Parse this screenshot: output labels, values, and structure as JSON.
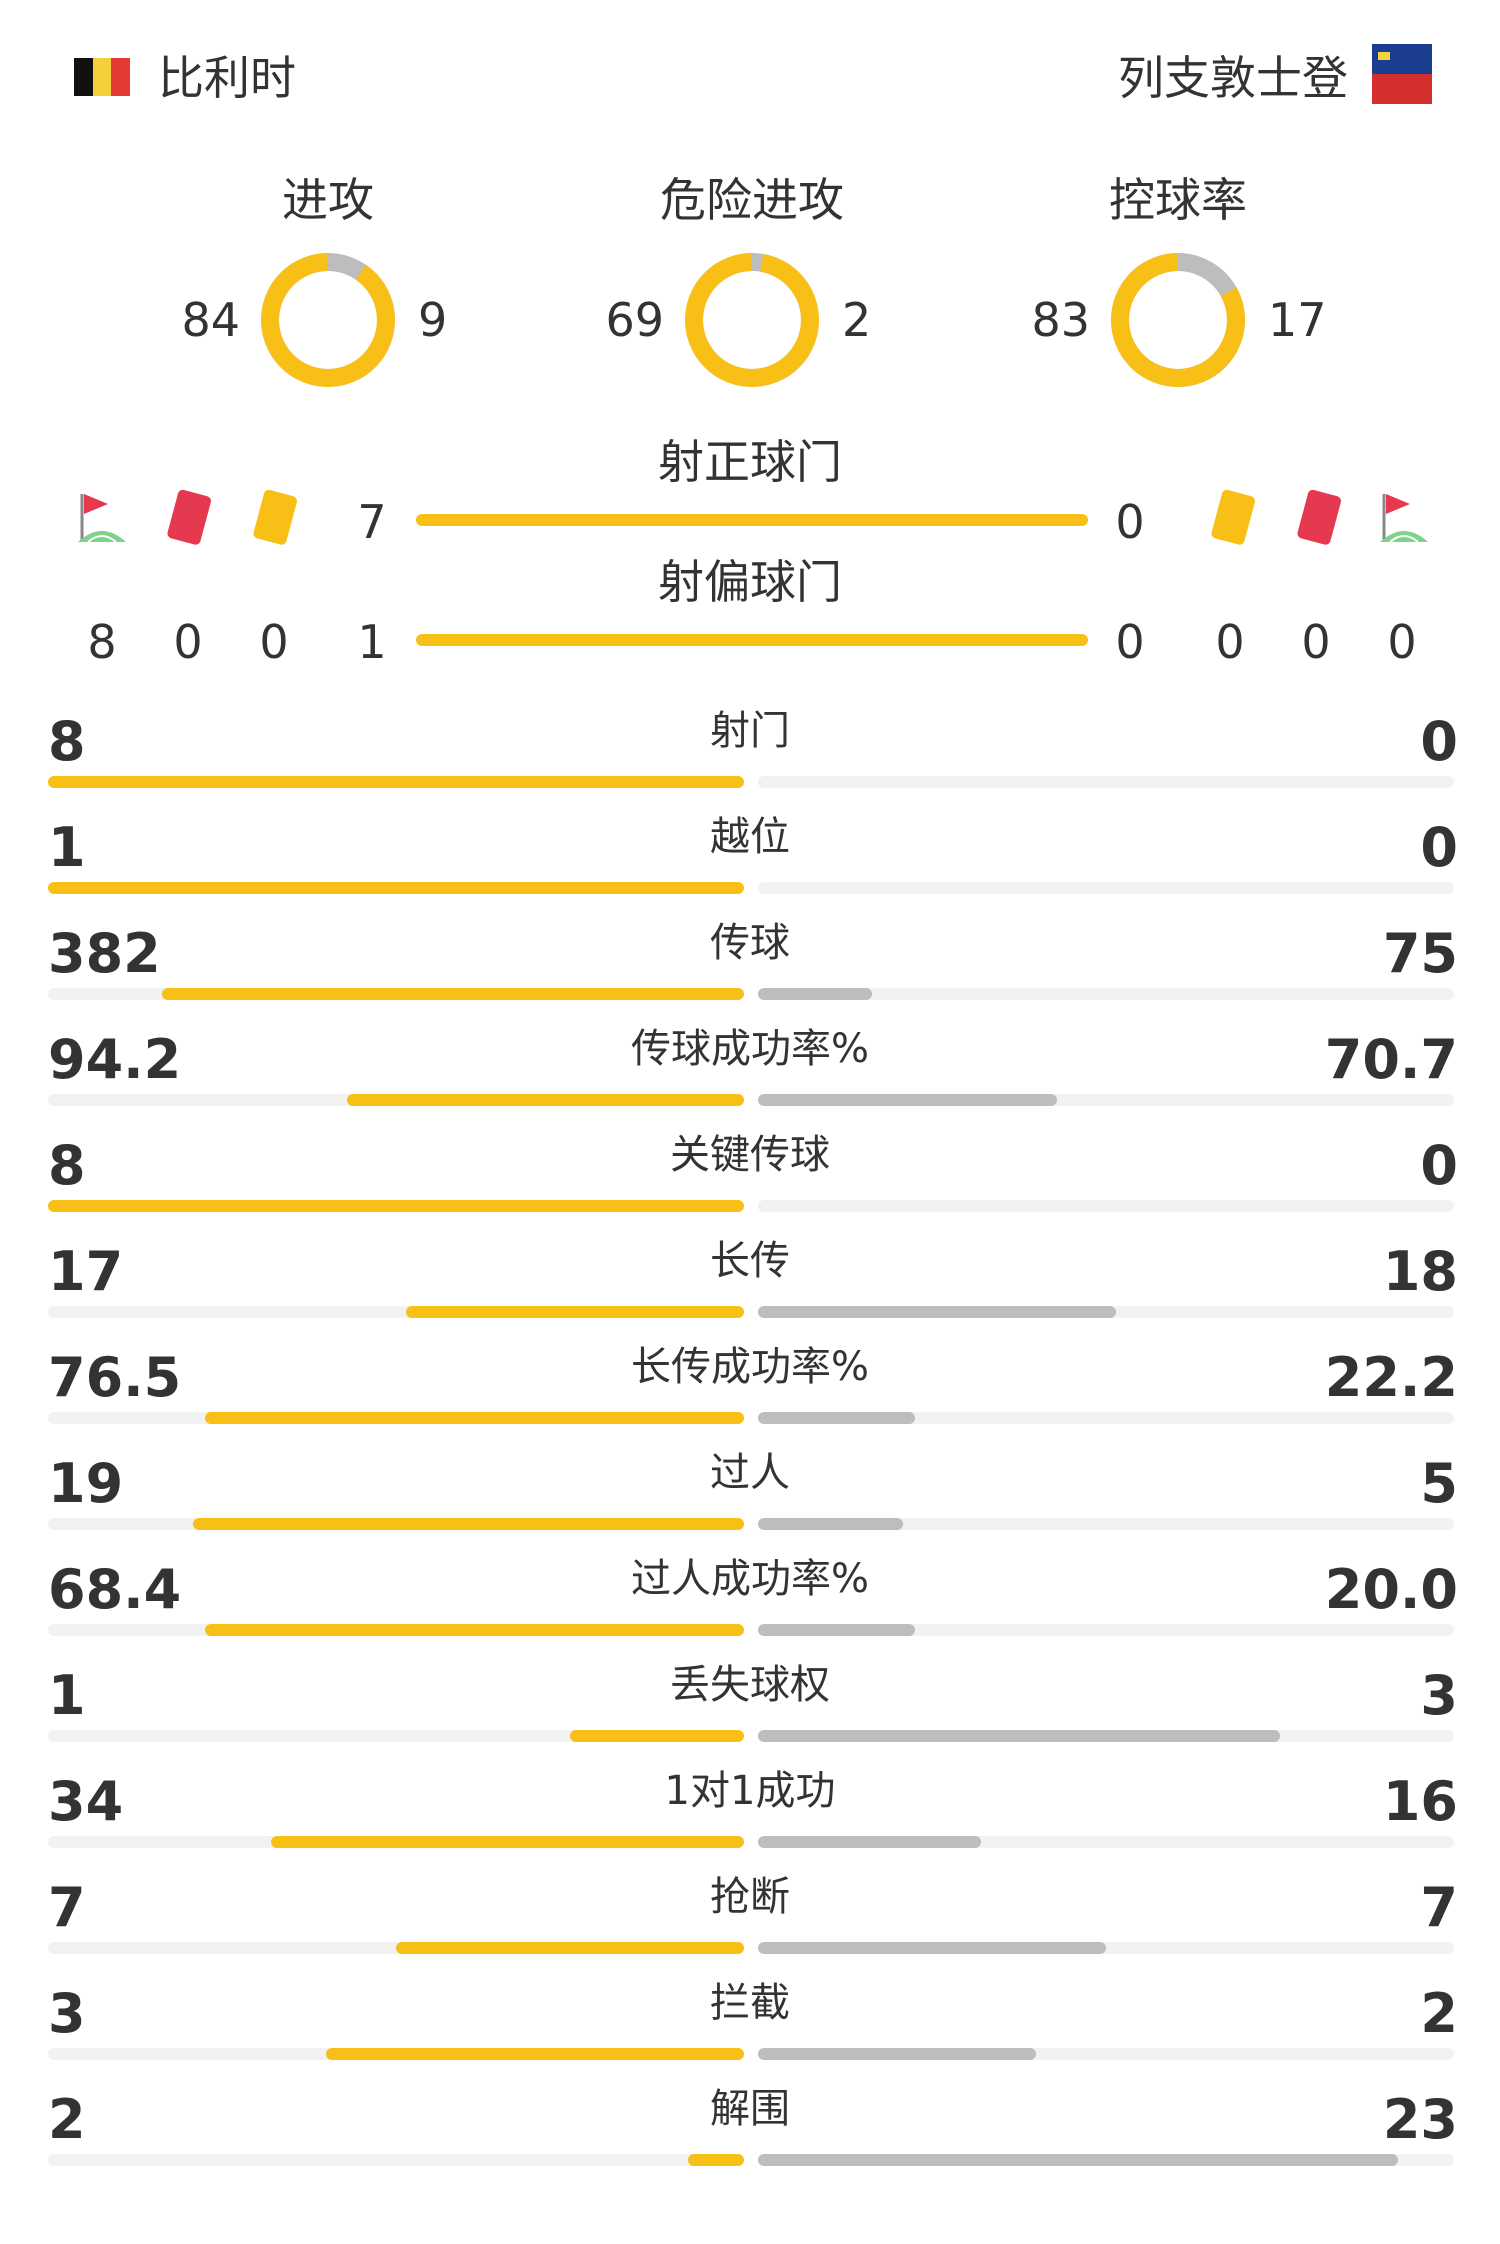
{
  "teams": {
    "home": {
      "name": "比利时",
      "flag": "belgium-flag"
    },
    "away": {
      "name": "列支敦士登",
      "flag": "liechtenstein-flag"
    }
  },
  "colors": {
    "home": "#F8C016",
    "away": "#BDBDBD",
    "track": "#F2F2F2",
    "text": "#333333"
  },
  "donuts": [
    {
      "title": "进攻",
      "home": "84",
      "away": "9",
      "home_share": 0.903
    },
    {
      "title": "危险进攻",
      "home": "69",
      "away": "2",
      "home_share": 0.972
    },
    {
      "title": "控球率",
      "home": "83",
      "away": "17",
      "home_share": 0.83
    }
  ],
  "shots": {
    "on_target": {
      "title": "射正球门",
      "home": "7",
      "away": "0",
      "home_share": 1.0
    },
    "off_target": {
      "title": "射偏球门",
      "home": "1",
      "away": "0",
      "home_share": 1.0
    }
  },
  "events": {
    "icons": [
      "corner-flag-icon",
      "red-card-icon",
      "yellow-card-icon"
    ],
    "home": {
      "corners": "8",
      "red": "0",
      "yellow": "0"
    },
    "away": {
      "corners": "0",
      "red": "0",
      "yellow": "0"
    }
  },
  "rows": [
    {
      "label": "射门",
      "home": "8",
      "away": "0",
      "home_frac": 1.0,
      "away_frac": 0.0
    },
    {
      "label": "越位",
      "home": "1",
      "away": "0",
      "home_frac": 1.0,
      "away_frac": 0.0
    },
    {
      "label": "传球",
      "home": "382",
      "away": "75",
      "home_frac": 0.836,
      "away_frac": 0.164
    },
    {
      "label": "传球成功率%",
      "home": "94.2",
      "away": "70.7",
      "home_frac": 0.571,
      "away_frac": 0.429
    },
    {
      "label": "关键传球",
      "home": "8",
      "away": "0",
      "home_frac": 1.0,
      "away_frac": 0.0
    },
    {
      "label": "长传",
      "home": "17",
      "away": "18",
      "home_frac": 0.486,
      "away_frac": 0.514
    },
    {
      "label": "长传成功率%",
      "home": "76.5",
      "away": "22.2",
      "home_frac": 0.775,
      "away_frac": 0.225
    },
    {
      "label": "过人",
      "home": "19",
      "away": "5",
      "home_frac": 0.792,
      "away_frac": 0.208
    },
    {
      "label": "过人成功率%",
      "home": "68.4",
      "away": "20.0",
      "home_frac": 0.774,
      "away_frac": 0.226
    },
    {
      "label": "丢失球权",
      "home": "1",
      "away": "3",
      "home_frac": 0.25,
      "away_frac": 0.75
    },
    {
      "label": "1对1成功",
      "home": "34",
      "away": "16",
      "home_frac": 0.68,
      "away_frac": 0.32
    },
    {
      "label": "抢断",
      "home": "7",
      "away": "7",
      "home_frac": 0.5,
      "away_frac": 0.5
    },
    {
      "label": "拦截",
      "home": "3",
      "away": "2",
      "home_frac": 0.6,
      "away_frac": 0.4
    },
    {
      "label": "解围",
      "home": "2",
      "away": "23",
      "home_frac": 0.08,
      "away_frac": 0.92
    }
  ]
}
